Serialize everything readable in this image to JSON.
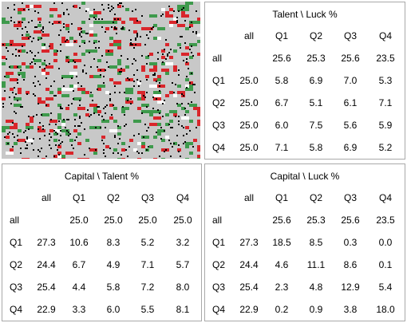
{
  "simulation": {
    "background_color": "#c8c8c8",
    "colors": {
      "red": "#d9262b",
      "green": "#3e9a4c",
      "black": "#000000",
      "white": "#ffffff"
    }
  },
  "tables": [
    {
      "id": "talent-luck",
      "title": "Talent \\ Luck %",
      "columns": [
        "all",
        "Q1",
        "Q2",
        "Q3",
        "Q4"
      ],
      "rows": [
        {
          "label": "all",
          "values": [
            "",
            "25.6",
            "25.3",
            "25.6",
            "23.5"
          ]
        },
        {
          "label": "Q1",
          "values": [
            "25.0",
            "5.8",
            "6.9",
            "7.0",
            "5.3"
          ]
        },
        {
          "label": "Q2",
          "values": [
            "25.0",
            "6.7",
            "5.1",
            "6.1",
            "7.1"
          ]
        },
        {
          "label": "Q3",
          "values": [
            "25.0",
            "6.0",
            "7.5",
            "5.6",
            "5.9"
          ]
        },
        {
          "label": "Q4",
          "values": [
            "25.0",
            "7.1",
            "5.8",
            "6.9",
            "5.2"
          ]
        }
      ]
    },
    {
      "id": "capital-talent",
      "title": "Capital \\ Talent %",
      "columns": [
        "all",
        "Q1",
        "Q2",
        "Q3",
        "Q4"
      ],
      "rows": [
        {
          "label": "all",
          "values": [
            "",
            "25.0",
            "25.0",
            "25.0",
            "25.0"
          ]
        },
        {
          "label": "Q1",
          "values": [
            "27.3",
            "10.6",
            "8.3",
            "5.2",
            "3.2"
          ]
        },
        {
          "label": "Q2",
          "values": [
            "24.4",
            "6.7",
            "4.9",
            "7.1",
            "5.7"
          ]
        },
        {
          "label": "Q3",
          "values": [
            "25.4",
            "4.4",
            "5.8",
            "7.2",
            "8.0"
          ]
        },
        {
          "label": "Q4",
          "values": [
            "22.9",
            "3.3",
            "6.0",
            "5.5",
            "8.1"
          ]
        }
      ]
    },
    {
      "id": "capital-luck",
      "title": "Capital \\ Luck %",
      "columns": [
        "all",
        "Q1",
        "Q2",
        "Q3",
        "Q4"
      ],
      "rows": [
        {
          "label": "all",
          "values": [
            "",
            "25.6",
            "25.3",
            "25.6",
            "23.5"
          ]
        },
        {
          "label": "Q1",
          "values": [
            "27.3",
            "18.5",
            "8.5",
            "0.3",
            "0.0"
          ]
        },
        {
          "label": "Q2",
          "values": [
            "24.4",
            "4.6",
            "11.1",
            "8.6",
            "0.1"
          ]
        },
        {
          "label": "Q3",
          "values": [
            "25.4",
            "2.3",
            "4.8",
            "12.9",
            "5.4"
          ]
        },
        {
          "label": "Q4",
          "values": [
            "22.9",
            "0.2",
            "0.9",
            "3.8",
            "18.0"
          ]
        }
      ]
    }
  ]
}
